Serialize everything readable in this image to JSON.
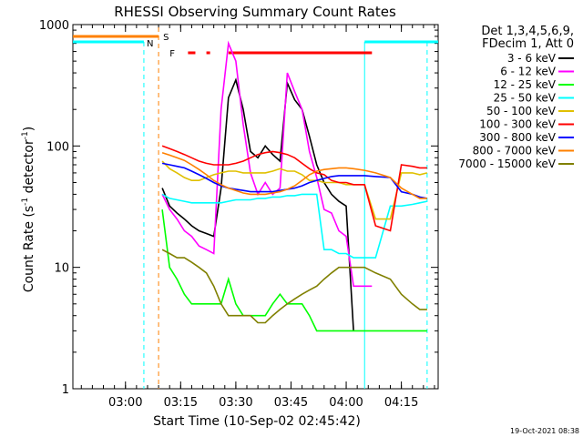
{
  "chart_data": {
    "type": "line",
    "title": "RHESSI Observing Summary Count Rates",
    "xlabel": "Start Time (10-Sep-02 02:45:42)",
    "ylabel_main": "Count Rate (s",
    "ylabel_sup1": "-1",
    "ylabel_mid": " detector",
    "ylabel_sup2": "-1",
    "ylabel_end": ")",
    "yscale": "log",
    "ylim": [
      1,
      1000
    ],
    "xlim": [
      "02:45:42",
      "04:25:00"
    ],
    "x_ticks": [
      "03:00",
      "03:15",
      "03:30",
      "03:45",
      "04:00",
      "04:15"
    ],
    "y_ticks": [
      "1",
      "10",
      "100",
      "1000"
    ],
    "legend_header": [
      "Det 1,3,4,5,6,9,",
      "FDecim 1, Att 0"
    ],
    "series": [
      {
        "name": "3 - 6 keV",
        "color": "#000000",
        "x": [
          "03:10",
          "03:12",
          "03:14",
          "03:16",
          "03:18",
          "03:20",
          "03:22",
          "03:24",
          "03:26",
          "03:28",
          "03:30",
          "03:32",
          "03:34",
          "03:36",
          "03:38",
          "03:40",
          "03:42",
          "03:44",
          "03:46",
          "03:48",
          "03:50",
          "03:52",
          "03:54",
          "03:56",
          "03:58",
          "04:00",
          "04:02"
        ],
        "y": [
          45,
          32,
          28,
          25,
          22,
          20,
          19,
          18,
          45,
          250,
          350,
          200,
          90,
          80,
          100,
          85,
          75,
          330,
          240,
          200,
          120,
          70,
          50,
          40,
          35,
          32,
          3
        ]
      },
      {
        "name": "6 - 12 keV",
        "color": "#ff00ff",
        "x": [
          "03:10",
          "03:12",
          "03:14",
          "03:16",
          "03:18",
          "03:20",
          "03:22",
          "03:24",
          "03:26",
          "03:28",
          "03:30",
          "03:32",
          "03:34",
          "03:36",
          "03:38",
          "03:40",
          "03:42",
          "03:44",
          "03:46",
          "03:48",
          "03:50",
          "03:52",
          "03:54",
          "03:56",
          "03:58",
          "04:00",
          "04:02",
          "04:05",
          "04:07"
        ],
        "y": [
          40,
          30,
          25,
          20,
          18,
          15,
          14,
          13,
          200,
          700,
          500,
          150,
          60,
          40,
          50,
          40,
          45,
          400,
          280,
          200,
          90,
          55,
          30,
          28,
          20,
          18,
          7,
          7,
          7
        ]
      },
      {
        "name": "12 - 25 keV",
        "color": "#00ff00",
        "x": [
          "03:10",
          "03:12",
          "03:14",
          "03:16",
          "03:18",
          "03:20",
          "03:22",
          "03:24",
          "03:26",
          "03:28",
          "03:30",
          "03:32",
          "03:34",
          "03:36",
          "03:38",
          "03:40",
          "03:42",
          "03:44",
          "03:46",
          "03:48",
          "03:50",
          "03:52",
          "03:54",
          "03:56",
          "03:58",
          "04:00",
          "04:02",
          "04:05",
          "04:08",
          "04:12",
          "04:15",
          "04:18",
          "04:20",
          "04:22"
        ],
        "y": [
          30,
          10,
          8,
          6,
          5,
          5,
          5,
          5,
          5,
          8,
          5,
          4,
          4,
          4,
          4,
          5,
          6,
          5,
          5,
          5,
          4,
          3,
          3,
          3,
          3,
          3,
          3,
          3,
          3,
          3,
          3,
          3,
          3,
          3
        ]
      },
      {
        "name": "25 - 50 keV",
        "color": "#00ffff",
        "x": [
          "03:10",
          "03:12",
          "03:14",
          "03:16",
          "03:18",
          "03:20",
          "03:22",
          "03:24",
          "03:26",
          "03:28",
          "03:30",
          "03:32",
          "03:34",
          "03:36",
          "03:38",
          "03:40",
          "03:42",
          "03:44",
          "03:46",
          "03:48",
          "03:50",
          "03:52",
          "03:54",
          "03:56",
          "03:58",
          "04:00",
          "04:02",
          "04:05",
          "04:08",
          "04:12",
          "04:15",
          "04:18",
          "04:20",
          "04:22"
        ],
        "y": [
          40,
          37,
          36,
          35,
          34,
          34,
          34,
          34,
          34,
          35,
          36,
          36,
          36,
          37,
          37,
          38,
          38,
          39,
          39,
          40,
          40,
          40,
          14,
          14,
          13,
          13,
          12,
          12,
          12,
          32,
          32,
          33,
          34,
          35
        ]
      },
      {
        "name": "50 - 100 keV",
        "color": "#e0c000",
        "x": [
          "03:10",
          "03:12",
          "03:14",
          "03:16",
          "03:18",
          "03:20",
          "03:22",
          "03:24",
          "03:26",
          "03:28",
          "03:30",
          "03:32",
          "03:34",
          "03:36",
          "03:38",
          "03:40",
          "03:42",
          "03:44",
          "03:46",
          "03:48",
          "03:50",
          "03:52",
          "03:54",
          "03:56",
          "03:58",
          "04:00",
          "04:02",
          "04:05",
          "04:08",
          "04:12",
          "04:15",
          "04:18",
          "04:20",
          "04:22"
        ],
        "y": [
          75,
          65,
          60,
          55,
          52,
          52,
          55,
          58,
          60,
          62,
          62,
          60,
          60,
          60,
          60,
          62,
          65,
          62,
          62,
          58,
          52,
          52,
          50,
          50,
          50,
          48,
          48,
          48,
          25,
          25,
          60,
          60,
          58,
          60
        ]
      },
      {
        "name": "100 - 300 keV",
        "color": "#ff0000",
        "x": [
          "03:10",
          "03:12",
          "03:14",
          "03:16",
          "03:18",
          "03:20",
          "03:22",
          "03:24",
          "03:26",
          "03:28",
          "03:30",
          "03:32",
          "03:34",
          "03:36",
          "03:38",
          "03:40",
          "03:42",
          "03:44",
          "03:46",
          "03:48",
          "03:50",
          "03:52",
          "03:54",
          "03:56",
          "03:58",
          "04:00",
          "04:02",
          "04:05",
          "04:08",
          "04:12",
          "04:15",
          "04:18",
          "04:20",
          "04:22"
        ],
        "y": [
          100,
          95,
          90,
          85,
          80,
          75,
          72,
          70,
          70,
          70,
          72,
          75,
          80,
          85,
          88,
          90,
          88,
          85,
          80,
          72,
          65,
          60,
          58,
          52,
          50,
          50,
          48,
          48,
          22,
          20,
          70,
          68,
          66,
          66
        ]
      },
      {
        "name": "300 - 800 keV",
        "color": "#0000ff",
        "x": [
          "03:10",
          "03:12",
          "03:14",
          "03:16",
          "03:18",
          "03:20",
          "03:22",
          "03:24",
          "03:26",
          "03:28",
          "03:30",
          "03:32",
          "03:34",
          "03:36",
          "03:38",
          "03:40",
          "03:42",
          "03:44",
          "03:46",
          "03:48",
          "03:50",
          "03:52",
          "03:54",
          "03:56",
          "03:58",
          "04:00",
          "04:02",
          "04:05",
          "04:08",
          "04:12",
          "04:15",
          "04:18",
          "04:20",
          "04:22"
        ],
        "y": [
          72,
          70,
          68,
          66,
          62,
          58,
          54,
          50,
          47,
          45,
          44,
          43,
          42,
          42,
          42,
          42,
          43,
          44,
          45,
          47,
          50,
          52,
          54,
          56,
          57,
          57,
          57,
          57,
          56,
          55,
          42,
          40,
          38,
          37
        ]
      },
      {
        "name": "800 - 7000 keV",
        "color": "#ff8000",
        "x": [
          "03:10",
          "03:12",
          "03:14",
          "03:16",
          "03:18",
          "03:20",
          "03:22",
          "03:24",
          "03:26",
          "03:28",
          "03:30",
          "03:32",
          "03:34",
          "03:36",
          "03:38",
          "03:40",
          "03:42",
          "03:44",
          "03:46",
          "03:48",
          "03:50",
          "03:52",
          "03:54",
          "03:56",
          "03:58",
          "04:00",
          "04:02",
          "04:05",
          "04:08",
          "04:12",
          "04:15",
          "04:18",
          "04:20",
          "04:22"
        ],
        "y": [
          88,
          84,
          80,
          76,
          70,
          64,
          58,
          52,
          48,
          45,
          43,
          41,
          40,
          40,
          40,
          41,
          42,
          44,
          47,
          52,
          58,
          62,
          64,
          65,
          66,
          66,
          65,
          63,
          60,
          55,
          45,
          40,
          37,
          37
        ]
      },
      {
        "name": "7000 - 15000 keV",
        "color": "#808000",
        "x": [
          "03:10",
          "03:12",
          "03:14",
          "03:16",
          "03:18",
          "03:20",
          "03:22",
          "03:24",
          "03:26",
          "03:28",
          "03:30",
          "03:32",
          "03:34",
          "03:36",
          "03:38",
          "03:40",
          "03:42",
          "03:44",
          "03:46",
          "03:48",
          "03:50",
          "03:52",
          "03:54",
          "03:56",
          "03:58",
          "04:00",
          "04:02",
          "04:05",
          "04:08",
          "04:12",
          "04:15",
          "04:18",
          "04:20",
          "04:22"
        ],
        "y": [
          14,
          13,
          12,
          12,
          11,
          10,
          9,
          7,
          5,
          4,
          4,
          4,
          4,
          3.5,
          3.5,
          4,
          4.5,
          5,
          5.5,
          6,
          6.5,
          7,
          8,
          9,
          10,
          10,
          10,
          10,
          9,
          8,
          6,
          5,
          4.5,
          4.5
        ]
      }
    ],
    "annotations": [
      {
        "label": "S",
        "color": "#ff8000"
      },
      {
        "label": "N",
        "color": "#00ffff"
      },
      {
        "label": "F",
        "color": "#ff0000"
      }
    ],
    "timestamp": "19-Oct-2021 08:38"
  }
}
